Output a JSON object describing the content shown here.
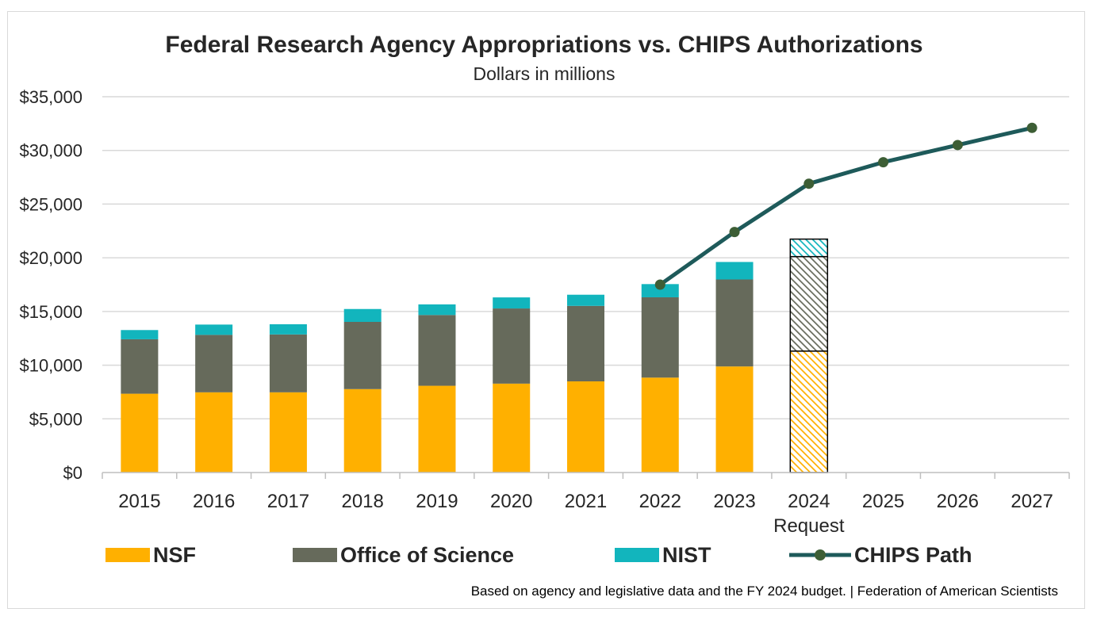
{
  "chart_data": {
    "type": "bar",
    "stacked": true,
    "title": "Federal Research Agency Appropriations vs. CHIPS Authorizations",
    "subtitle": "Dollars in millions",
    "categories": [
      "2015",
      "2016",
      "2017",
      "2018",
      "2019",
      "2020",
      "2021",
      "2022",
      "2023",
      "2024",
      "2025",
      "2026",
      "2027"
    ],
    "category_sublabels": {
      "2024": "Request"
    },
    "ylim": [
      0,
      35000
    ],
    "yticks": [
      0,
      5000,
      10000,
      15000,
      20000,
      25000,
      30000,
      35000
    ],
    "ytick_labels": [
      "$0",
      "$5,000",
      "$10,000",
      "$15,000",
      "$20,000",
      "$25,000",
      "$30,000",
      "$35,000"
    ],
    "grid": true,
    "legend_position": "bottom",
    "hatched_categories": [
      "2024"
    ],
    "series": [
      {
        "name": "NSF",
        "type": "bar",
        "color": "#FFB000",
        "values": [
          7340,
          7470,
          7470,
          7770,
          8080,
          8280,
          8490,
          8840,
          9880,
          11310,
          null,
          null,
          null
        ]
      },
      {
        "name": "Office of Science",
        "type": "bar",
        "color": "#666A5B",
        "values": [
          5070,
          5350,
          5390,
          6260,
          6590,
          7000,
          7030,
          7480,
          8100,
          8800,
          null,
          null,
          null
        ]
      },
      {
        "name": "NIST",
        "type": "bar",
        "color": "#12B5BD",
        "values": [
          860,
          960,
          950,
          1200,
          990,
          1030,
          1040,
          1230,
          1630,
          1630,
          null,
          null,
          null
        ]
      },
      {
        "name": "CHIPS Path",
        "type": "line",
        "color": "#1E5A5A",
        "marker_color": "#3D5E35",
        "values": [
          null,
          null,
          null,
          null,
          null,
          null,
          null,
          17500,
          22400,
          26900,
          28900,
          30500,
          32100
        ]
      }
    ]
  },
  "source_note": "Based on agency and legislative data and the FY 2024 budget. | Federation of American Scientists"
}
